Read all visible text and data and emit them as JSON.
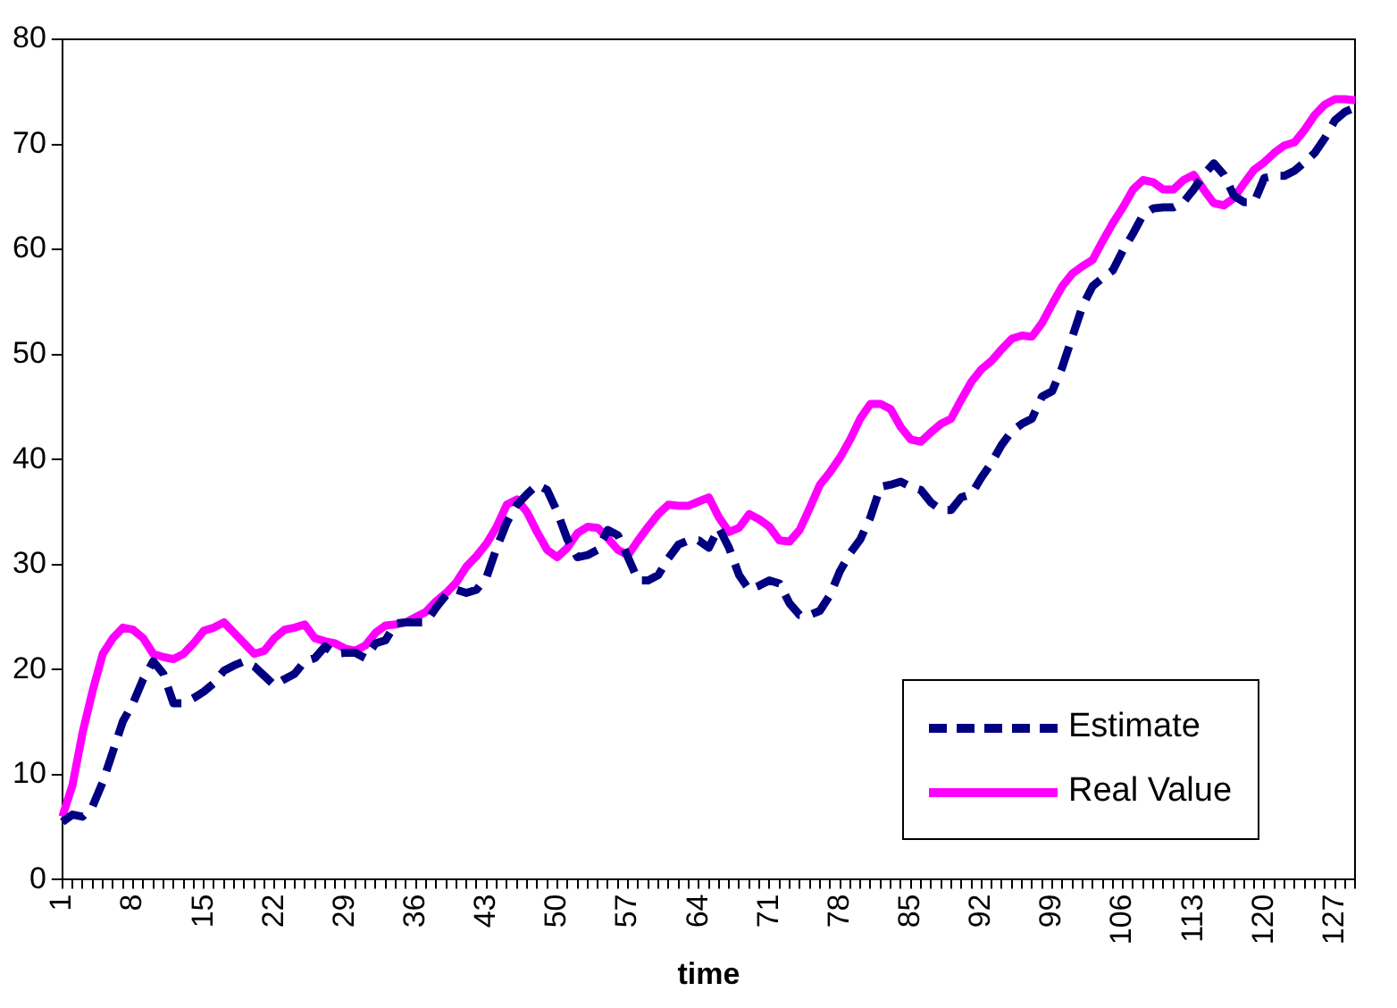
{
  "chart_data": {
    "type": "line",
    "xlabel": "time",
    "categories": [
      "1",
      null,
      null,
      null,
      null,
      null,
      null,
      "8",
      null,
      null,
      null,
      null,
      null,
      null,
      "15",
      null,
      null,
      null,
      null,
      null,
      null,
      "22",
      null,
      null,
      null,
      null,
      null,
      null,
      "29",
      null,
      null,
      null,
      null,
      null,
      null,
      "36",
      null,
      null,
      null,
      null,
      null,
      null,
      "43",
      null,
      null,
      null,
      null,
      null,
      null,
      "50",
      null,
      null,
      null,
      null,
      null,
      null,
      "57",
      null,
      null,
      null,
      null,
      null,
      null,
      "64",
      null,
      null,
      null,
      null,
      null,
      null,
      "71",
      null,
      null,
      null,
      null,
      null,
      null,
      "78",
      null,
      null,
      null,
      null,
      null,
      null,
      "85",
      null,
      null,
      null,
      null,
      null,
      null,
      "92",
      null,
      null,
      null,
      null,
      null,
      null,
      "99",
      null,
      null,
      null,
      null,
      null,
      null,
      "106",
      null,
      null,
      null,
      null,
      null,
      null,
      "113",
      null,
      null,
      null,
      null,
      null,
      null,
      "120",
      null,
      null,
      null,
      null,
      null,
      null,
      "127",
      null,
      null
    ],
    "series": [
      {
        "name": "Estimate",
        "color": "#000080",
        "line_style": "dashed",
        "values": [
          5.5,
          6.2,
          6,
          7,
          9.3,
          12.2,
          15.1,
          16.8,
          19.1,
          20.8,
          19.6,
          16.8,
          16.8,
          17.3,
          17.9,
          18.7,
          19.9,
          20.4,
          20.8,
          20.3,
          19.4,
          18.5,
          19.1,
          19.6,
          20.8,
          21.1,
          22.2,
          21.5,
          21.6,
          21.6,
          21.1,
          22.5,
          22.8,
          24.4,
          24.5,
          24.5,
          24.5,
          25.9,
          27.1,
          27.6,
          27.3,
          27.6,
          28.8,
          31.6,
          34,
          35.7,
          36.7,
          37.6,
          37.1,
          35,
          32.4,
          30.7,
          30.9,
          31.4,
          33.3,
          32.8,
          30.7,
          28.5,
          28.5,
          29,
          30.6,
          31.9,
          32.3,
          32.3,
          31.6,
          33.5,
          31.6,
          29,
          27.6,
          28,
          28.5,
          28.2,
          26.3,
          25.2,
          25.2,
          25.6,
          27.1,
          29.4,
          31.1,
          32.4,
          34.5,
          37.4,
          37.6,
          37.9,
          37.4,
          37.1,
          35.9,
          35.2,
          35.2,
          36.4,
          36.7,
          38.3,
          39.7,
          41.4,
          42.7,
          43.4,
          43.9,
          46,
          46.5,
          48.8,
          51.7,
          54.6,
          56.5,
          57.3,
          58,
          59.9,
          61.5,
          63.3,
          63.9,
          64,
          64,
          64.5,
          65.7,
          67.1,
          68.2,
          67.1,
          65.1,
          64.5,
          64.5,
          66.8,
          67,
          67,
          67.5,
          68.3,
          69.2,
          70.6,
          72.3,
          73.1,
          73.5
        ]
      },
      {
        "name": "Real Value",
        "color": "#ff00ff",
        "line_style": "solid",
        "values": [
          6,
          9,
          14,
          18,
          21.5,
          23,
          24,
          23.8,
          23,
          21.5,
          21.2,
          21,
          21.5,
          22.5,
          23.7,
          24,
          24.5,
          23.5,
          22.5,
          21.5,
          21.8,
          23,
          23.8,
          24,
          24.3,
          23,
          22.7,
          22.5,
          22,
          21.8,
          22.3,
          23.5,
          24.2,
          24.3,
          24.5,
          25,
          25.5,
          26.5,
          27.3,
          28.3,
          29.8,
          30.8,
          32,
          33.6,
          35.7,
          36.2,
          35,
          33.1,
          31.4,
          30.7,
          31.6,
          33,
          33.6,
          33.5,
          32.5,
          31.4,
          30.9,
          32.3,
          33.6,
          34.8,
          35.7,
          35.6,
          35.6,
          36,
          36.4,
          34.5,
          33.1,
          33.5,
          34.8,
          34.3,
          33.6,
          32.3,
          32.2,
          33.3,
          35.4,
          37.6,
          38.8,
          40.2,
          41.9,
          43.9,
          45.3,
          45.3,
          44.8,
          43.1,
          41.9,
          41.7,
          42.6,
          43.4,
          43.9,
          45.7,
          47.4,
          48.6,
          49.4,
          50.5,
          51.5,
          51.8,
          51.7,
          53,
          54.8,
          56.5,
          57.7,
          58.4,
          59,
          60.8,
          62.5,
          64,
          65.7,
          66.6,
          66.4,
          65.7,
          65.7,
          66.6,
          67.1,
          65.7,
          64.4,
          64.2,
          64.9,
          66.3,
          67.6,
          68.3,
          69.2,
          69.9,
          70.2,
          71.4,
          72.8,
          73.8,
          74.3,
          74.3,
          74.2
        ]
      }
    ],
    "ylim": [
      0,
      80
    ],
    "yticks": [
      0,
      10,
      20,
      30,
      40,
      50,
      60,
      70,
      80
    ],
    "grid": false,
    "legend": "bottom right",
    "marker": "none"
  }
}
